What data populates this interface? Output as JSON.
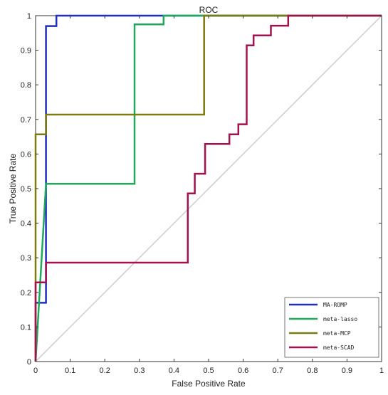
{
  "chart_data": {
    "type": "line",
    "title": "ROC",
    "xlabel": "False Positive Rate",
    "ylabel": "True Positive Rate",
    "xlim": [
      0,
      1
    ],
    "ylim": [
      0,
      1
    ],
    "xticks": [
      "0",
      "0.1",
      "0.2",
      "0.3",
      "0.4",
      "0.5",
      "0.6",
      "0.7",
      "0.8",
      "0.9",
      "1"
    ],
    "yticks": [
      "0",
      "0.1",
      "0.2",
      "0.3",
      "0.4",
      "0.5",
      "0.6",
      "0.7",
      "0.8",
      "0.9",
      "1"
    ],
    "grid": false,
    "legend_position": "bottom-right",
    "reference_line": {
      "x": [
        0,
        1
      ],
      "y": [
        0,
        1
      ],
      "color": "#cccccc"
    },
    "series": [
      {
        "name": "MA-ROMP",
        "color": "#1f2fbf",
        "x": [
          0,
          0,
          0.03,
          0.03,
          0.03,
          0.06,
          0.06,
          0.37,
          1
        ],
        "y": [
          0,
          0.17,
          0.17,
          0.97,
          0.97,
          0.97,
          1,
          1,
          1
        ]
      },
      {
        "name": "meta-lasso",
        "color": "#1faa5a",
        "x": [
          0,
          0.03,
          0.286,
          0.286,
          0.37,
          0.37,
          1
        ],
        "y": [
          0,
          0.514,
          0.514,
          0.975,
          0.975,
          1,
          1
        ]
      },
      {
        "name": "meta-MCP",
        "color": "#7d7a0f",
        "x": [
          0,
          0,
          0.03,
          0.03,
          0.487,
          0.487,
          0.73,
          1
        ],
        "y": [
          0,
          0.657,
          0.657,
          0.714,
          0.714,
          1,
          1,
          1
        ]
      },
      {
        "name": "meta-SCAD",
        "color": "#a3124f",
        "x": [
          0,
          0,
          0.03,
          0.03,
          0.44,
          0.44,
          0.46,
          0.46,
          0.49,
          0.49,
          0.56,
          0.56,
          0.586,
          0.586,
          0.61,
          0.61,
          0.63,
          0.63,
          0.68,
          0.68,
          0.73,
          0.73,
          1
        ],
        "y": [
          0,
          0.229,
          0.229,
          0.286,
          0.286,
          0.486,
          0.486,
          0.543,
          0.543,
          0.629,
          0.629,
          0.657,
          0.657,
          0.686,
          0.686,
          0.914,
          0.914,
          0.943,
          0.943,
          0.971,
          0.971,
          1,
          1
        ]
      }
    ]
  }
}
